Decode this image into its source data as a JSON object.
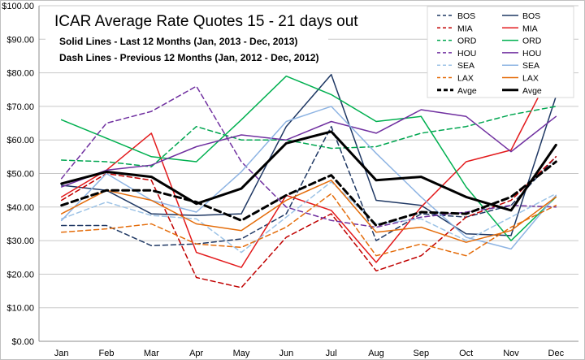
{
  "chart_data": {
    "type": "line",
    "title": "ICAR Average Rate  Quotes 15 - 21 days out",
    "subtitle_lines": [
      "Solid Lines - Last 12 Months (Jan, 2013 - Dec, 2013)",
      "Dash Lines - Previous 12 Months (Jan, 2012 - Dec, 2012)"
    ],
    "xlabel": "",
    "ylabel": "",
    "categories": [
      "Jan",
      "Feb",
      "Mar",
      "Apr",
      "May",
      "Jun",
      "Jul",
      "Aug",
      "Sep",
      "Oct",
      "Nov",
      "Dec"
    ],
    "ylim": [
      0,
      100
    ],
    "yticks": [
      0,
      10,
      20,
      30,
      40,
      50,
      60,
      70,
      80,
      90,
      100
    ],
    "ytick_labels": [
      "$0.00",
      "$10.00",
      "$20.00",
      "$30.00",
      "$40.00",
      "$50.00",
      "$60.00",
      "$70.00",
      "$80.00",
      "$90.00",
      "$100.00"
    ],
    "grid": true,
    "legend_position": "top-right",
    "series": [
      {
        "name": "BOS",
        "style": "dash",
        "color": "#1F3864",
        "values": [
          34.5,
          34.5,
          28.5,
          29,
          30.5,
          38,
          64,
          30,
          38,
          37,
          40.5,
          55
        ]
      },
      {
        "name": "BOS",
        "style": "solid",
        "color": "#1F3864",
        "values": [
          46.5,
          45,
          38,
          37.5,
          38,
          64,
          79.5,
          42,
          40.5,
          32,
          31.5,
          73
        ]
      },
      {
        "name": "MIA",
        "style": "dash",
        "color": "#C00000",
        "values": [
          42,
          50,
          48,
          19,
          16,
          31,
          38,
          21,
          25.5,
          37,
          42,
          55
        ]
      },
      {
        "name": "MIA",
        "style": "solid",
        "color": "#E31A1C",
        "values": [
          43,
          51,
          62,
          26.5,
          22,
          43.5,
          39,
          23.5,
          40,
          53.5,
          57,
          83
        ]
      },
      {
        "name": "ORD",
        "style": "dash",
        "color": "#00A650",
        "values": [
          54,
          53.5,
          52,
          64,
          60,
          60,
          57.5,
          58,
          62,
          64,
          67.5,
          70
        ]
      },
      {
        "name": "ORD",
        "style": "solid",
        "color": "#00B050",
        "values": [
          66,
          60.5,
          55,
          53.5,
          66,
          79,
          73.5,
          65.5,
          67,
          46,
          30,
          43
        ]
      },
      {
        "name": "HOU",
        "style": "dash",
        "color": "#7030A0",
        "values": [
          48.5,
          65,
          68.5,
          76,
          53.5,
          40,
          36,
          34,
          37,
          38.5,
          40.5,
          40
        ]
      },
      {
        "name": "HOU",
        "style": "solid",
        "color": "#7030A0",
        "values": [
          46,
          51,
          52.5,
          58,
          61.5,
          60,
          65.5,
          62,
          69,
          67,
          56.5,
          67
        ]
      },
      {
        "name": "SEA",
        "style": "dash",
        "color": "#9DC3E6",
        "values": [
          36.5,
          41.5,
          37.5,
          36.5,
          26.5,
          37,
          47.5,
          35,
          36.5,
          30,
          37,
          44
        ]
      },
      {
        "name": "SEA",
        "style": "solid",
        "color": "#8EB4E3",
        "values": [
          36,
          50,
          42,
          38.5,
          50.5,
          65.5,
          70,
          56,
          43,
          31,
          27.5,
          43.5
        ]
      },
      {
        "name": "LAX",
        "style": "dash",
        "color": "#E46C0A",
        "values": [
          32.5,
          33.5,
          35,
          29,
          28,
          34,
          44,
          25.5,
          29,
          25.5,
          34,
          40.5
        ]
      },
      {
        "name": "LAX",
        "style": "solid",
        "color": "#E46C0A",
        "values": [
          38,
          45,
          42,
          35,
          33,
          42,
          48,
          32.5,
          34,
          29.5,
          33,
          43
        ]
      },
      {
        "name": "Avge",
        "style": "dash",
        "color": "#000000",
        "values": [
          40.5,
          45,
          45,
          41.5,
          36,
          43.5,
          49.5,
          34.5,
          38.5,
          38,
          43,
          53.5
        ]
      },
      {
        "name": "Avge",
        "style": "solid",
        "color": "#000000",
        "values": [
          47,
          50.5,
          49,
          41,
          45.5,
          59,
          62.5,
          48,
          49,
          43,
          39,
          58.5
        ]
      }
    ]
  }
}
